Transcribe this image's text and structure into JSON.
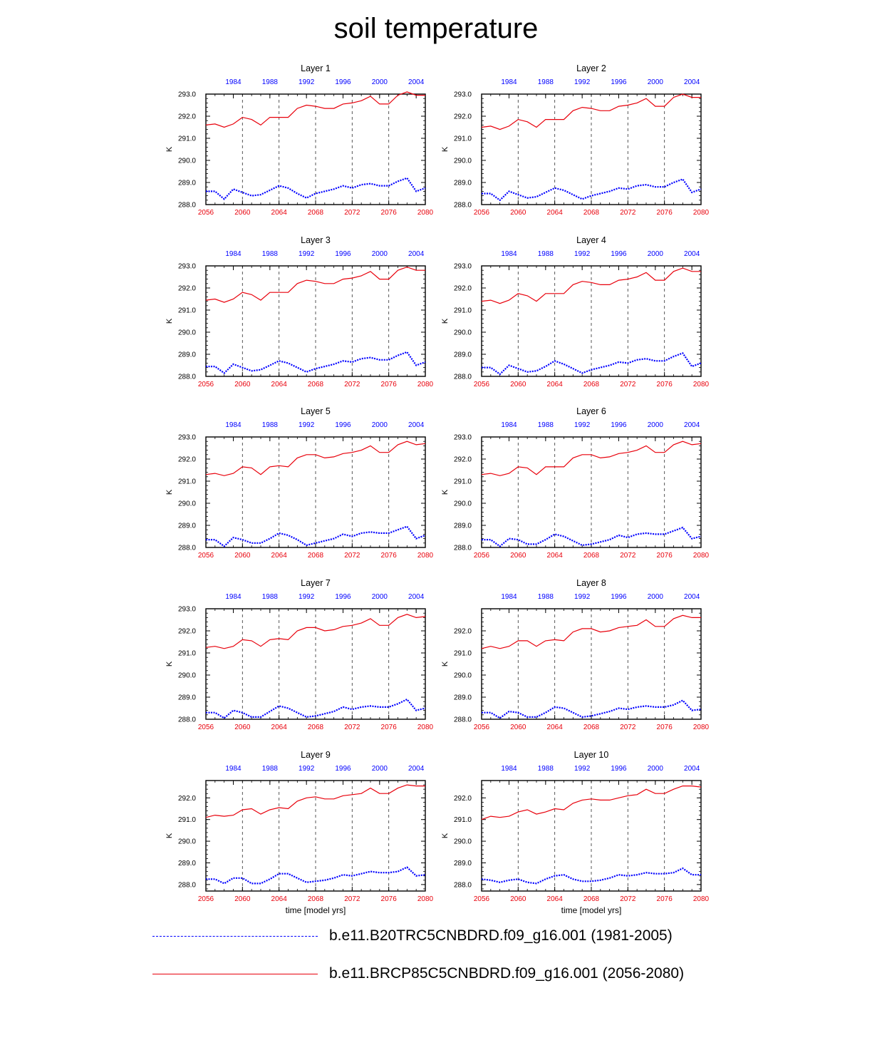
{
  "title": "soil temperature",
  "colors": {
    "future": "#e8000b",
    "historical": "#0000ff",
    "grid": "#444444",
    "axis": "#000000"
  },
  "chart_data": {
    "type": "line",
    "layout": "5x2 panel grid",
    "xlabel": "time [model yrs]",
    "ylabel": "K",
    "x_bottom": {
      "range": [
        2056,
        2080
      ],
      "ticks": [
        "2056",
        "2060",
        "2064",
        "2068",
        "2072",
        "2076",
        "2080"
      ],
      "color": "#e8000b"
    },
    "x_top": {
      "range": [
        1981,
        2005
      ],
      "ticks": [
        "1984",
        "1988",
        "1992",
        "1996",
        "2000",
        "2004"
      ],
      "color": "#0000ff"
    },
    "x_future": [
      2056,
      2057,
      2058,
      2059,
      2060,
      2061,
      2062,
      2063,
      2064,
      2065,
      2066,
      2067,
      2068,
      2069,
      2070,
      2071,
      2072,
      2073,
      2074,
      2075,
      2076,
      2077,
      2078,
      2079,
      2080
    ],
    "legend": [
      {
        "name": "b.e11.B20TRC5CNBDRD.f09_g16.001 (1981-2005)",
        "style": "dashed",
        "color": "#0000ff"
      },
      {
        "name": "b.e11.BRCP85C5CNBDRD.f09_g16.001 (2056-2080)",
        "style": "solid",
        "color": "#e8000b"
      }
    ],
    "panels": [
      {
        "title": "Layer 1",
        "ylim": [
          288.0,
          293.0
        ],
        "yticks": [
          "288.0",
          "289.0",
          "290.0",
          "291.0",
          "292.0",
          "293.0"
        ],
        "future": [
          291.6,
          291.65,
          291.5,
          291.65,
          291.95,
          291.85,
          291.6,
          291.95,
          291.95,
          291.95,
          292.35,
          292.5,
          292.45,
          292.35,
          292.35,
          292.55,
          292.6,
          292.7,
          292.9,
          292.55,
          292.55,
          292.95,
          293.1,
          292.95,
          292.95
        ],
        "historical": [
          288.6,
          288.6,
          288.25,
          288.7,
          288.55,
          288.4,
          288.45,
          288.65,
          288.85,
          288.75,
          288.5,
          288.3,
          288.5,
          288.6,
          288.7,
          288.85,
          288.75,
          288.9,
          288.95,
          288.85,
          288.85,
          289.05,
          289.2,
          288.6,
          288.75
        ]
      },
      {
        "title": "Layer 2",
        "ylim": [
          288.0,
          293.0
        ],
        "yticks": [
          "288.0",
          "289.0",
          "290.0",
          "291.0",
          "292.0",
          "293.0"
        ],
        "future": [
          291.5,
          291.55,
          291.4,
          291.55,
          291.85,
          291.75,
          291.5,
          291.85,
          291.85,
          291.85,
          292.25,
          292.4,
          292.35,
          292.25,
          292.25,
          292.45,
          292.5,
          292.6,
          292.8,
          292.45,
          292.45,
          292.85,
          293.0,
          292.85,
          292.85
        ],
        "historical": [
          288.5,
          288.5,
          288.2,
          288.6,
          288.45,
          288.3,
          288.35,
          288.55,
          288.75,
          288.65,
          288.45,
          288.25,
          288.4,
          288.5,
          288.6,
          288.75,
          288.7,
          288.85,
          288.9,
          288.8,
          288.8,
          289.0,
          289.15,
          288.55,
          288.7
        ]
      },
      {
        "title": "Layer 3",
        "ylim": [
          288.0,
          293.0
        ],
        "yticks": [
          "288.0",
          "289.0",
          "290.0",
          "291.0",
          "292.0",
          "293.0"
        ],
        "future": [
          291.45,
          291.5,
          291.35,
          291.5,
          291.8,
          291.7,
          291.45,
          291.8,
          291.8,
          291.8,
          292.2,
          292.35,
          292.3,
          292.2,
          292.2,
          292.4,
          292.45,
          292.55,
          292.75,
          292.4,
          292.4,
          292.8,
          292.95,
          292.8,
          292.8
        ],
        "historical": [
          288.45,
          288.45,
          288.15,
          288.55,
          288.4,
          288.25,
          288.3,
          288.5,
          288.7,
          288.6,
          288.4,
          288.2,
          288.35,
          288.45,
          288.55,
          288.7,
          288.65,
          288.8,
          288.85,
          288.75,
          288.75,
          288.95,
          289.1,
          288.5,
          288.65
        ]
      },
      {
        "title": "Layer 4",
        "ylim": [
          288.0,
          293.0
        ],
        "yticks": [
          "288.0",
          "289.0",
          "290.0",
          "291.0",
          "292.0",
          "293.0"
        ],
        "future": [
          291.4,
          291.45,
          291.3,
          291.45,
          291.75,
          291.65,
          291.4,
          291.75,
          291.75,
          291.75,
          292.15,
          292.3,
          292.25,
          292.15,
          292.15,
          292.35,
          292.4,
          292.5,
          292.7,
          292.35,
          292.35,
          292.75,
          292.9,
          292.75,
          292.75
        ],
        "historical": [
          288.4,
          288.4,
          288.1,
          288.5,
          288.35,
          288.2,
          288.25,
          288.45,
          288.7,
          288.55,
          288.35,
          288.15,
          288.3,
          288.4,
          288.5,
          288.65,
          288.6,
          288.75,
          288.8,
          288.7,
          288.7,
          288.9,
          289.05,
          288.45,
          288.6
        ]
      },
      {
        "title": "Layer 5",
        "ylim": [
          288.0,
          293.0
        ],
        "yticks": [
          "288.0",
          "289.0",
          "290.0",
          "291.0",
          "292.0",
          "293.0"
        ],
        "future": [
          291.3,
          291.35,
          291.25,
          291.35,
          291.65,
          291.6,
          291.3,
          291.65,
          291.7,
          291.65,
          292.05,
          292.2,
          292.2,
          292.05,
          292.1,
          292.25,
          292.3,
          292.4,
          292.6,
          292.3,
          292.3,
          292.65,
          292.8,
          292.65,
          292.7
        ],
        "historical": [
          288.35,
          288.35,
          288.05,
          288.45,
          288.35,
          288.2,
          288.2,
          288.4,
          288.65,
          288.55,
          288.35,
          288.1,
          288.2,
          288.3,
          288.4,
          288.6,
          288.5,
          288.65,
          288.7,
          288.65,
          288.65,
          288.8,
          288.95,
          288.4,
          288.55
        ]
      },
      {
        "title": "Layer 6",
        "ylim": [
          288.0,
          293.0
        ],
        "yticks": [
          "288.0",
          "289.0",
          "290.0",
          "291.0",
          "292.0",
          "293.0"
        ],
        "future": [
          291.3,
          291.35,
          291.25,
          291.35,
          291.65,
          291.6,
          291.3,
          291.65,
          291.65,
          291.65,
          292.05,
          292.2,
          292.2,
          292.05,
          292.1,
          292.25,
          292.3,
          292.4,
          292.6,
          292.3,
          292.3,
          292.65,
          292.8,
          292.65,
          292.7
        ],
        "historical": [
          288.35,
          288.35,
          288.05,
          288.4,
          288.35,
          288.15,
          288.15,
          288.35,
          288.6,
          288.5,
          288.3,
          288.1,
          288.15,
          288.25,
          288.35,
          288.55,
          288.45,
          288.6,
          288.65,
          288.6,
          288.6,
          288.75,
          288.9,
          288.4,
          288.5
        ]
      },
      {
        "title": "Layer 7",
        "ylim": [
          288.0,
          293.0
        ],
        "yticks": [
          "288.0",
          "289.0",
          "290.0",
          "291.0",
          "292.0",
          "293.0"
        ],
        "future": [
          291.25,
          291.3,
          291.2,
          291.3,
          291.6,
          291.55,
          291.3,
          291.6,
          291.65,
          291.6,
          292.0,
          292.15,
          292.15,
          292.0,
          292.05,
          292.2,
          292.25,
          292.35,
          292.55,
          292.25,
          292.25,
          292.6,
          292.75,
          292.6,
          292.65
        ],
        "historical": [
          288.3,
          288.3,
          288.05,
          288.4,
          288.3,
          288.1,
          288.1,
          288.35,
          288.6,
          288.5,
          288.3,
          288.1,
          288.15,
          288.25,
          288.35,
          288.55,
          288.45,
          288.55,
          288.6,
          288.55,
          288.55,
          288.7,
          288.9,
          288.4,
          288.5
        ]
      },
      {
        "title": "Layer 8",
        "ylim": [
          288.0,
          293.0
        ],
        "yticks": [
          "288.0",
          "289.0",
          "290.0",
          "291.0",
          "292.0"
        ],
        "future": [
          291.2,
          291.3,
          291.2,
          291.3,
          291.55,
          291.55,
          291.3,
          291.55,
          291.6,
          291.55,
          291.95,
          292.1,
          292.1,
          291.95,
          292.0,
          292.15,
          292.2,
          292.25,
          292.5,
          292.2,
          292.2,
          292.55,
          292.7,
          292.6,
          292.6
        ],
        "historical": [
          288.3,
          288.3,
          288.05,
          288.35,
          288.3,
          288.1,
          288.1,
          288.3,
          288.55,
          288.5,
          288.3,
          288.1,
          288.15,
          288.25,
          288.35,
          288.5,
          288.45,
          288.55,
          288.6,
          288.55,
          288.55,
          288.65,
          288.85,
          288.4,
          288.45
        ]
      },
      {
        "title": "Layer 9",
        "ylim": [
          287.7,
          292.8
        ],
        "yticks": [
          "288.0",
          "289.0",
          "290.0",
          "291.0",
          "292.0"
        ],
        "future": [
          291.1,
          291.2,
          291.15,
          291.2,
          291.45,
          291.5,
          291.25,
          291.45,
          291.55,
          291.5,
          291.85,
          292.0,
          292.05,
          291.95,
          291.95,
          292.1,
          292.15,
          292.2,
          292.45,
          292.2,
          292.2,
          292.45,
          292.6,
          292.55,
          292.55
        ],
        "historical": [
          288.25,
          288.25,
          288.05,
          288.3,
          288.3,
          288.05,
          288.05,
          288.25,
          288.5,
          288.5,
          288.3,
          288.1,
          288.15,
          288.2,
          288.3,
          288.45,
          288.4,
          288.5,
          288.6,
          288.55,
          288.55,
          288.6,
          288.8,
          288.4,
          288.45
        ]
      },
      {
        "title": "Layer 10",
        "ylim": [
          287.7,
          292.8
        ],
        "yticks": [
          "288.0",
          "289.0",
          "290.0",
          "291.0",
          "292.0"
        ],
        "future": [
          291.0,
          291.15,
          291.1,
          291.15,
          291.35,
          291.45,
          291.25,
          291.35,
          291.5,
          291.45,
          291.75,
          291.9,
          291.95,
          291.9,
          291.9,
          292.0,
          292.1,
          292.15,
          292.4,
          292.2,
          292.2,
          292.4,
          292.55,
          292.55,
          292.5
        ],
        "historical": [
          288.25,
          288.2,
          288.1,
          288.2,
          288.25,
          288.1,
          288.05,
          288.25,
          288.4,
          288.45,
          288.25,
          288.15,
          288.15,
          288.2,
          288.3,
          288.45,
          288.4,
          288.45,
          288.55,
          288.5,
          288.5,
          288.55,
          288.75,
          288.45,
          288.45
        ]
      }
    ]
  }
}
